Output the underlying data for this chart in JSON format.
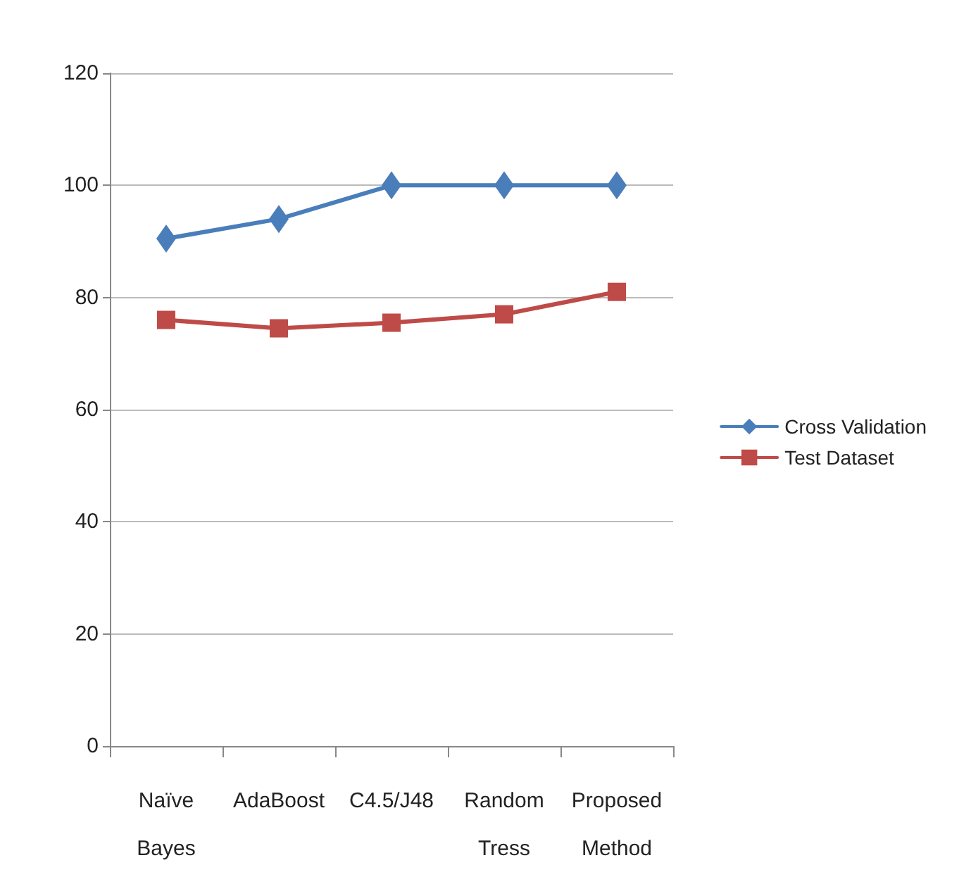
{
  "chart_data": {
    "type": "line",
    "categories": [
      "Naïve\nBayes",
      "AdaBoost",
      "C4.5/J48",
      "Random\nTress",
      "Proposed\nMethod"
    ],
    "series": [
      {
        "name": "Cross Validation",
        "color": "#4a7ebb",
        "marker": "diamond",
        "values": [
          90.5,
          94,
          100,
          100,
          100
        ]
      },
      {
        "name": "Test Dataset",
        "color": "#be4b48",
        "marker": "square",
        "values": [
          76,
          74.5,
          75.5,
          77,
          81
        ]
      }
    ],
    "ylim": [
      0,
      120
    ],
    "yticks": [
      0,
      20,
      40,
      60,
      80,
      100,
      120
    ],
    "grid": "y",
    "legend": "right",
    "line_style": "solid"
  }
}
